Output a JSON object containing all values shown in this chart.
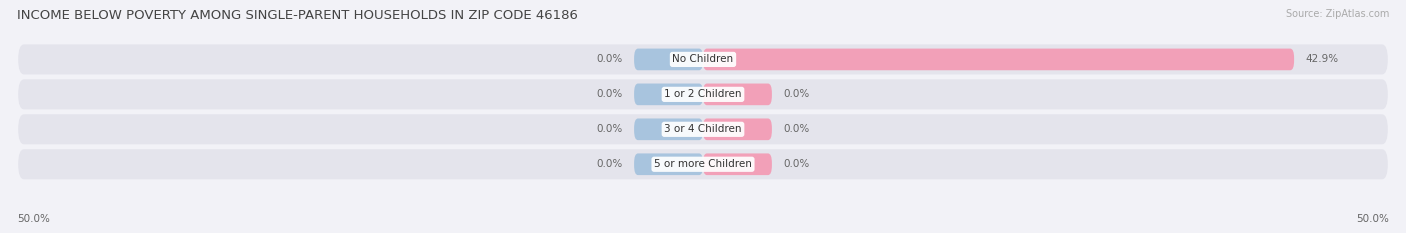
{
  "title": "INCOME BELOW POVERTY AMONG SINGLE-PARENT HOUSEHOLDS IN ZIP CODE 46186",
  "source": "Source: ZipAtlas.com",
  "categories": [
    "No Children",
    "1 or 2 Children",
    "3 or 4 Children",
    "5 or more Children"
  ],
  "single_father": [
    0.0,
    0.0,
    0.0,
    0.0
  ],
  "single_mother": [
    42.9,
    0.0,
    0.0,
    0.0
  ],
  "father_color": "#a8c4de",
  "mother_color": "#f2a0b8",
  "axis_min": -50.0,
  "axis_max": 50.0,
  "stub_size": 5.0,
  "xlim_left_label": "50.0%",
  "xlim_right_label": "50.0%",
  "bg_color": "#f2f2f7",
  "bar_bg_color": "#e4e4ec",
  "bar_bg_color_alt": "#dcdce8",
  "title_color": "#444444",
  "label_color": "#666666",
  "source_color": "#aaaaaa",
  "title_fontsize": 9.5,
  "bar_height": 0.62,
  "label_fontsize": 7.5,
  "cat_fontsize": 7.5
}
